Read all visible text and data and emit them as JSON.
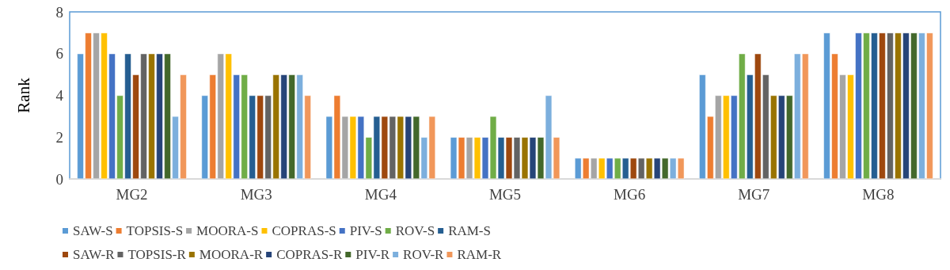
{
  "chart_data": {
    "type": "bar",
    "ylabel": "Rank",
    "categories": [
      "MG2",
      "MG3",
      "MG4",
      "MG5",
      "MG6",
      "MG7",
      "MG8"
    ],
    "ylim": [
      0,
      8
    ],
    "yticks": [
      0,
      2,
      4,
      6,
      8
    ],
    "grid": false,
    "legend": "bottom",
    "series": [
      {
        "name": "SAW-S",
        "color": "#5b9bd5",
        "values": [
          6,
          4,
          3,
          2,
          1,
          5,
          7
        ]
      },
      {
        "name": "TOPSIS-S",
        "color": "#ed7d31",
        "values": [
          7,
          5,
          4,
          2,
          1,
          3,
          6
        ]
      },
      {
        "name": "MOORA-S",
        "color": "#a5a5a5",
        "values": [
          7,
          6,
          3,
          2,
          1,
          4,
          5
        ]
      },
      {
        "name": "COPRAS-S",
        "color": "#ffc000",
        "values": [
          7,
          6,
          3,
          2,
          1,
          4,
          5
        ]
      },
      {
        "name": "PIV-S",
        "color": "#4472c4",
        "values": [
          6,
          5,
          3,
          2,
          1,
          4,
          7
        ]
      },
      {
        "name": "ROV-S",
        "color": "#70ad47",
        "values": [
          4,
          5,
          2,
          3,
          1,
          6,
          7
        ]
      },
      {
        "name": "RAM-S",
        "color": "#255e91",
        "values": [
          6,
          4,
          3,
          2,
          1,
          5,
          7
        ]
      },
      {
        "name": "SAW-R",
        "color": "#9e480e",
        "values": [
          5,
          4,
          3,
          2,
          1,
          6,
          7
        ]
      },
      {
        "name": "TOPSIS-R",
        "color": "#636363",
        "values": [
          6,
          4,
          3,
          2,
          1,
          5,
          7
        ]
      },
      {
        "name": "MOORA-R",
        "color": "#997300",
        "values": [
          6,
          5,
          3,
          2,
          1,
          4,
          7
        ]
      },
      {
        "name": "COPRAS-R",
        "color": "#264478",
        "values": [
          6,
          5,
          3,
          2,
          1,
          4,
          7
        ]
      },
      {
        "name": "PIV-R",
        "color": "#43682b",
        "values": [
          6,
          5,
          3,
          2,
          1,
          4,
          7
        ]
      },
      {
        "name": "ROV-R",
        "color": "#7cafdd",
        "values": [
          3,
          5,
          2,
          4,
          1,
          6,
          7
        ]
      },
      {
        "name": "RAM-R",
        "color": "#f1975a",
        "values": [
          5,
          4,
          3,
          2,
          1,
          6,
          7
        ]
      }
    ]
  }
}
